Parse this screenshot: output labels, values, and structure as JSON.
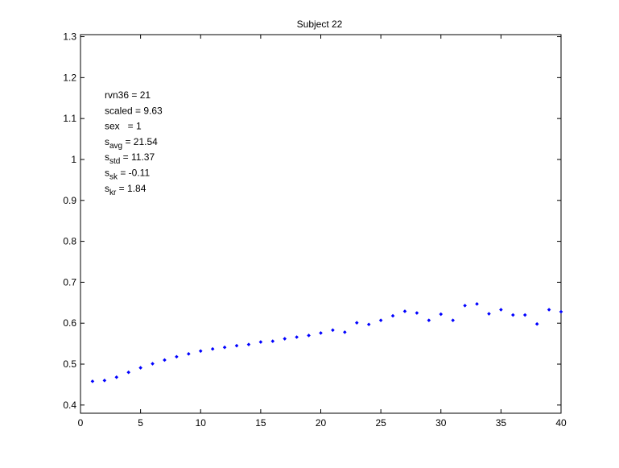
{
  "chart_data": {
    "type": "scatter",
    "title": "Subject 22",
    "xlabel": "",
    "ylabel": "",
    "xlim": [
      0,
      40
    ],
    "ylim": [
      0.38,
      1.305
    ],
    "grid": false,
    "marker_color": "#0000ff",
    "x_ticks": [
      0,
      5,
      10,
      15,
      20,
      25,
      30,
      35,
      40
    ],
    "y_ticks": [
      0.4,
      0.5,
      0.6,
      0.7,
      0.8,
      0.9,
      1,
      1.1,
      1.2,
      1.3
    ],
    "series": [
      {
        "x": [
          1,
          2,
          3,
          4,
          5,
          6,
          7,
          8,
          9,
          10,
          11,
          12,
          13,
          14,
          15,
          16,
          17,
          18,
          19,
          20,
          21,
          22,
          23,
          24,
          25,
          26,
          27,
          28,
          29,
          30,
          31,
          32,
          33,
          34,
          35,
          36,
          37,
          38,
          39,
          40
        ],
        "y": [
          0.458,
          0.46,
          0.468,
          0.48,
          0.491,
          0.501,
          0.51,
          0.518,
          0.525,
          0.532,
          0.537,
          0.541,
          0.545,
          0.548,
          0.554,
          0.556,
          0.562,
          0.566,
          0.57,
          0.576,
          0.583,
          0.578,
          0.601,
          0.597,
          0.607,
          0.618,
          0.629,
          0.625,
          0.607,
          0.622,
          0.607,
          0.643,
          0.647,
          0.623,
          0.633,
          0.62,
          0.62,
          0.598,
          0.633,
          0.628
        ]
      }
    ],
    "annotations": [
      {
        "base": "rvn36 = 21",
        "sub": "",
        "rest": ""
      },
      {
        "base": "scaled = 9.63",
        "sub": "",
        "rest": ""
      },
      {
        "base": "sex   = 1",
        "sub": "",
        "rest": ""
      },
      {
        "base": "s",
        "sub": "avg",
        "rest": " = 21.54"
      },
      {
        "base": "s",
        "sub": "std",
        "rest": " = 11.37"
      },
      {
        "base": "s",
        "sub": "sk",
        "rest": " = -0.11"
      },
      {
        "base": "s",
        "sub": "kr",
        "rest": " = 1.84"
      }
    ]
  }
}
